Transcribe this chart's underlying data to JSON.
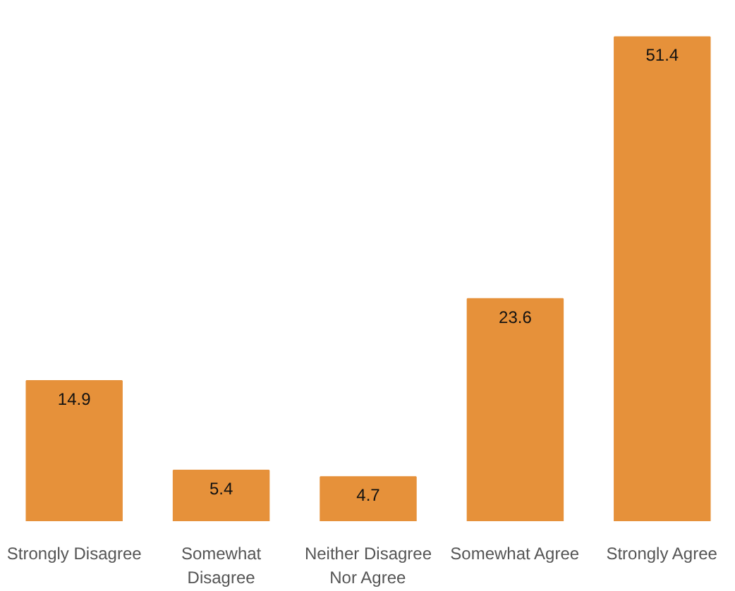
{
  "chart_data": {
    "type": "bar",
    "categories": [
      "Strongly Disagree",
      "Somewhat\nDisagree",
      "Neither Disagree\nNor Agree",
      "Somewhat Agree",
      "Strongly Agree"
    ],
    "values": [
      14.9,
      5.4,
      4.7,
      23.6,
      51.4
    ],
    "color": "#e6913a",
    "data_labels": true,
    "grid": false
  }
}
